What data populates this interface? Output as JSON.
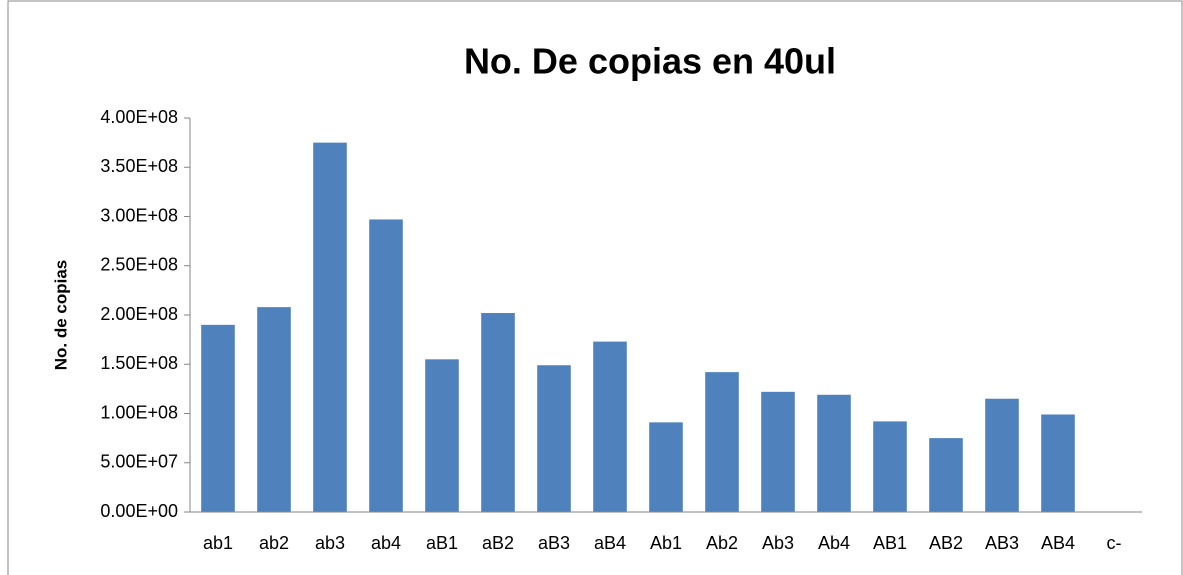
{
  "chart_data": {
    "type": "bar",
    "title": "No. De copias en 40ul",
    "y_label": "No. de copias",
    "categories": [
      "ab1",
      "ab2",
      "ab3",
      "ab4",
      "aB1",
      "aB2",
      "aB3",
      "aB4",
      "Ab1",
      "Ab2",
      "Ab3",
      "Ab4",
      "AB1",
      "AB2",
      "AB3",
      "AB4",
      "c-"
    ],
    "values": [
      190000000,
      208000000,
      375000000,
      297000000,
      155000000,
      202000000,
      149000000,
      173000000,
      91000000,
      142000000,
      122000000,
      119000000,
      92000000,
      75000000,
      115000000,
      99000000,
      0
    ],
    "color": "#4f81bd",
    "ylim": [
      0,
      400000000
    ],
    "yticks": [
      {
        "value": 0,
        "label": "0.00E+00"
      },
      {
        "value": 50000000,
        "label": "5.00E+07"
      },
      {
        "value": 100000000,
        "label": "1.00E+08"
      },
      {
        "value": 150000000,
        "label": "1.50E+08"
      },
      {
        "value": 200000000,
        "label": "2.00E+08"
      },
      {
        "value": 250000000,
        "label": "2.50E+08"
      },
      {
        "value": 300000000,
        "label": "3.00E+08"
      },
      {
        "value": 350000000,
        "label": "3.50E+08"
      },
      {
        "value": 400000000,
        "label": "4.00E+08"
      }
    ],
    "grid": false
  }
}
